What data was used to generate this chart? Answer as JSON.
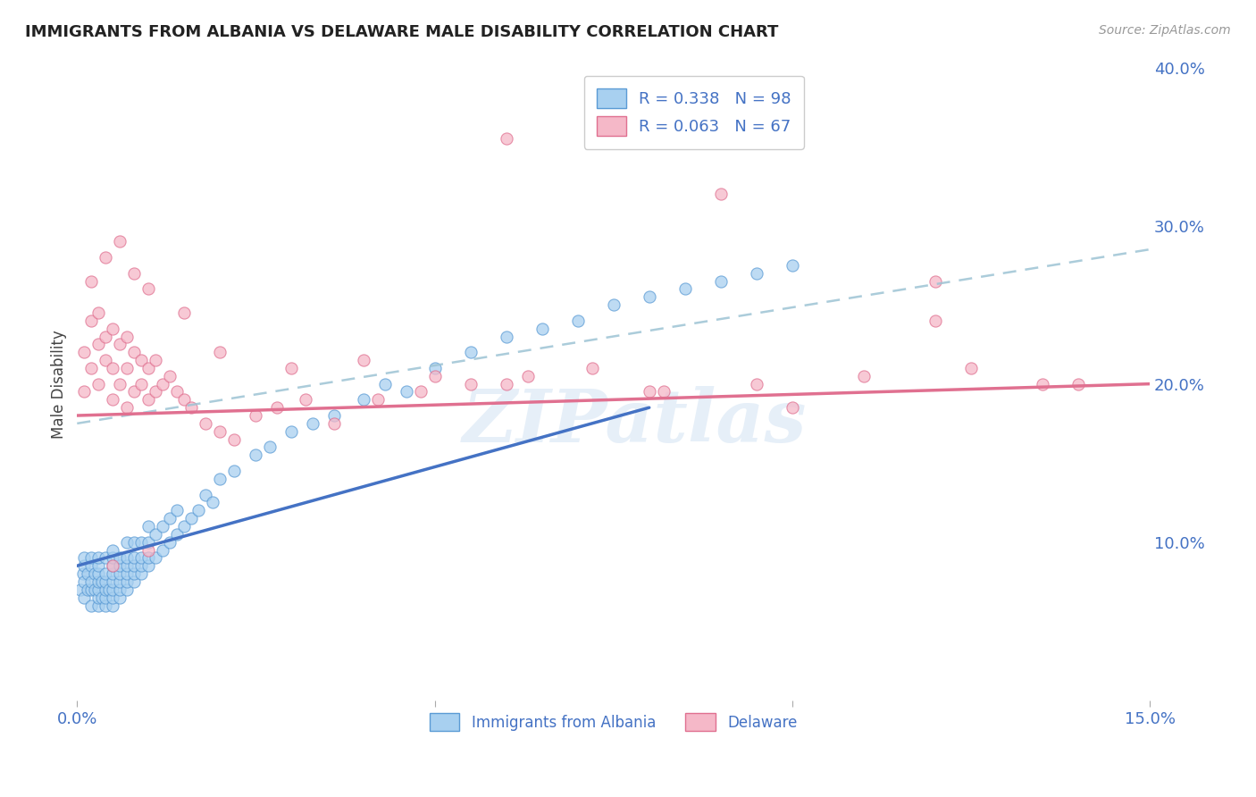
{
  "title": "IMMIGRANTS FROM ALBANIA VS DELAWARE MALE DISABILITY CORRELATION CHART",
  "source": "Source: ZipAtlas.com",
  "ylabel": "Male Disability",
  "xlim": [
    0.0,
    0.15
  ],
  "ylim": [
    0.0,
    0.4
  ],
  "xticks": [
    0.0,
    0.05,
    0.1,
    0.15
  ],
  "xtick_labels": [
    "0.0%",
    "",
    "",
    "15.0%"
  ],
  "ytick_labels_right": [
    "10.0%",
    "20.0%",
    "30.0%",
    "40.0%"
  ],
  "yticks_right": [
    0.1,
    0.2,
    0.3,
    0.4
  ],
  "color_albania": "#A8D0F0",
  "color_albania_edge": "#5B9BD5",
  "color_albania_line": "#4472C4",
  "color_delaware": "#F5B8C8",
  "color_delaware_edge": "#E07090",
  "color_delaware_line": "#E07090",
  "color_dashed_line": "#9DC3D4",
  "background_color": "#ffffff",
  "grid_color": "#C8D8E0",
  "albania_x": [
    0.0005,
    0.0008,
    0.001,
    0.001,
    0.001,
    0.001,
    0.0015,
    0.0015,
    0.002,
    0.002,
    0.002,
    0.002,
    0.002,
    0.0025,
    0.0025,
    0.003,
    0.003,
    0.003,
    0.003,
    0.003,
    0.003,
    0.003,
    0.0035,
    0.0035,
    0.004,
    0.004,
    0.004,
    0.004,
    0.004,
    0.004,
    0.0045,
    0.005,
    0.005,
    0.005,
    0.005,
    0.005,
    0.005,
    0.005,
    0.005,
    0.006,
    0.006,
    0.006,
    0.006,
    0.006,
    0.006,
    0.007,
    0.007,
    0.007,
    0.007,
    0.007,
    0.007,
    0.008,
    0.008,
    0.008,
    0.008,
    0.008,
    0.009,
    0.009,
    0.009,
    0.009,
    0.01,
    0.01,
    0.01,
    0.01,
    0.011,
    0.011,
    0.012,
    0.012,
    0.013,
    0.013,
    0.014,
    0.014,
    0.015,
    0.016,
    0.017,
    0.018,
    0.019,
    0.02,
    0.022,
    0.025,
    0.027,
    0.03,
    0.033,
    0.036,
    0.04,
    0.043,
    0.046,
    0.05,
    0.055,
    0.06,
    0.065,
    0.07,
    0.075,
    0.08,
    0.085,
    0.09,
    0.095,
    0.1
  ],
  "albania_y": [
    0.07,
    0.08,
    0.065,
    0.075,
    0.085,
    0.09,
    0.07,
    0.08,
    0.06,
    0.07,
    0.075,
    0.085,
    0.09,
    0.07,
    0.08,
    0.06,
    0.065,
    0.07,
    0.075,
    0.08,
    0.085,
    0.09,
    0.065,
    0.075,
    0.06,
    0.065,
    0.07,
    0.075,
    0.08,
    0.09,
    0.07,
    0.06,
    0.065,
    0.07,
    0.075,
    0.08,
    0.085,
    0.09,
    0.095,
    0.065,
    0.07,
    0.075,
    0.08,
    0.085,
    0.09,
    0.07,
    0.075,
    0.08,
    0.085,
    0.09,
    0.1,
    0.075,
    0.08,
    0.085,
    0.09,
    0.1,
    0.08,
    0.085,
    0.09,
    0.1,
    0.085,
    0.09,
    0.1,
    0.11,
    0.09,
    0.105,
    0.095,
    0.11,
    0.1,
    0.115,
    0.105,
    0.12,
    0.11,
    0.115,
    0.12,
    0.13,
    0.125,
    0.14,
    0.145,
    0.155,
    0.16,
    0.17,
    0.175,
    0.18,
    0.19,
    0.2,
    0.195,
    0.21,
    0.22,
    0.23,
    0.235,
    0.24,
    0.25,
    0.255,
    0.26,
    0.265,
    0.27,
    0.275
  ],
  "delaware_x": [
    0.001,
    0.001,
    0.002,
    0.002,
    0.003,
    0.003,
    0.003,
    0.004,
    0.004,
    0.005,
    0.005,
    0.005,
    0.006,
    0.006,
    0.007,
    0.007,
    0.007,
    0.008,
    0.008,
    0.009,
    0.009,
    0.01,
    0.01,
    0.011,
    0.011,
    0.012,
    0.013,
    0.014,
    0.015,
    0.016,
    0.018,
    0.02,
    0.022,
    0.025,
    0.028,
    0.032,
    0.036,
    0.042,
    0.048,
    0.055,
    0.063,
    0.072,
    0.082,
    0.095,
    0.11,
    0.125,
    0.14,
    0.002,
    0.004,
    0.006,
    0.008,
    0.01,
    0.015,
    0.02,
    0.03,
    0.04,
    0.05,
    0.06,
    0.08,
    0.1,
    0.12,
    0.135,
    0.06,
    0.09,
    0.12,
    0.005,
    0.01
  ],
  "delaware_y": [
    0.195,
    0.22,
    0.21,
    0.24,
    0.2,
    0.225,
    0.245,
    0.215,
    0.23,
    0.19,
    0.21,
    0.235,
    0.2,
    0.225,
    0.185,
    0.21,
    0.23,
    0.195,
    0.22,
    0.2,
    0.215,
    0.19,
    0.21,
    0.195,
    0.215,
    0.2,
    0.205,
    0.195,
    0.19,
    0.185,
    0.175,
    0.17,
    0.165,
    0.18,
    0.185,
    0.19,
    0.175,
    0.19,
    0.195,
    0.2,
    0.205,
    0.21,
    0.195,
    0.2,
    0.205,
    0.21,
    0.2,
    0.265,
    0.28,
    0.29,
    0.27,
    0.26,
    0.245,
    0.22,
    0.21,
    0.215,
    0.205,
    0.2,
    0.195,
    0.185,
    0.24,
    0.2,
    0.355,
    0.32,
    0.265,
    0.085,
    0.095
  ],
  "blue_line_x0": 0.0,
  "blue_line_y0": 0.085,
  "blue_line_x1": 0.08,
  "blue_line_y1": 0.185,
  "pink_line_x0": 0.0,
  "pink_line_y0": 0.18,
  "pink_line_x1": 0.15,
  "pink_line_y1": 0.2,
  "dash_line_x0": 0.0,
  "dash_line_y0": 0.175,
  "dash_line_x1": 0.15,
  "dash_line_y1": 0.285,
  "watermark_text": "ZIPatlas",
  "watermark_size": 60,
  "legend_labels": [
    "Immigrants from Albania",
    "Delaware"
  ]
}
